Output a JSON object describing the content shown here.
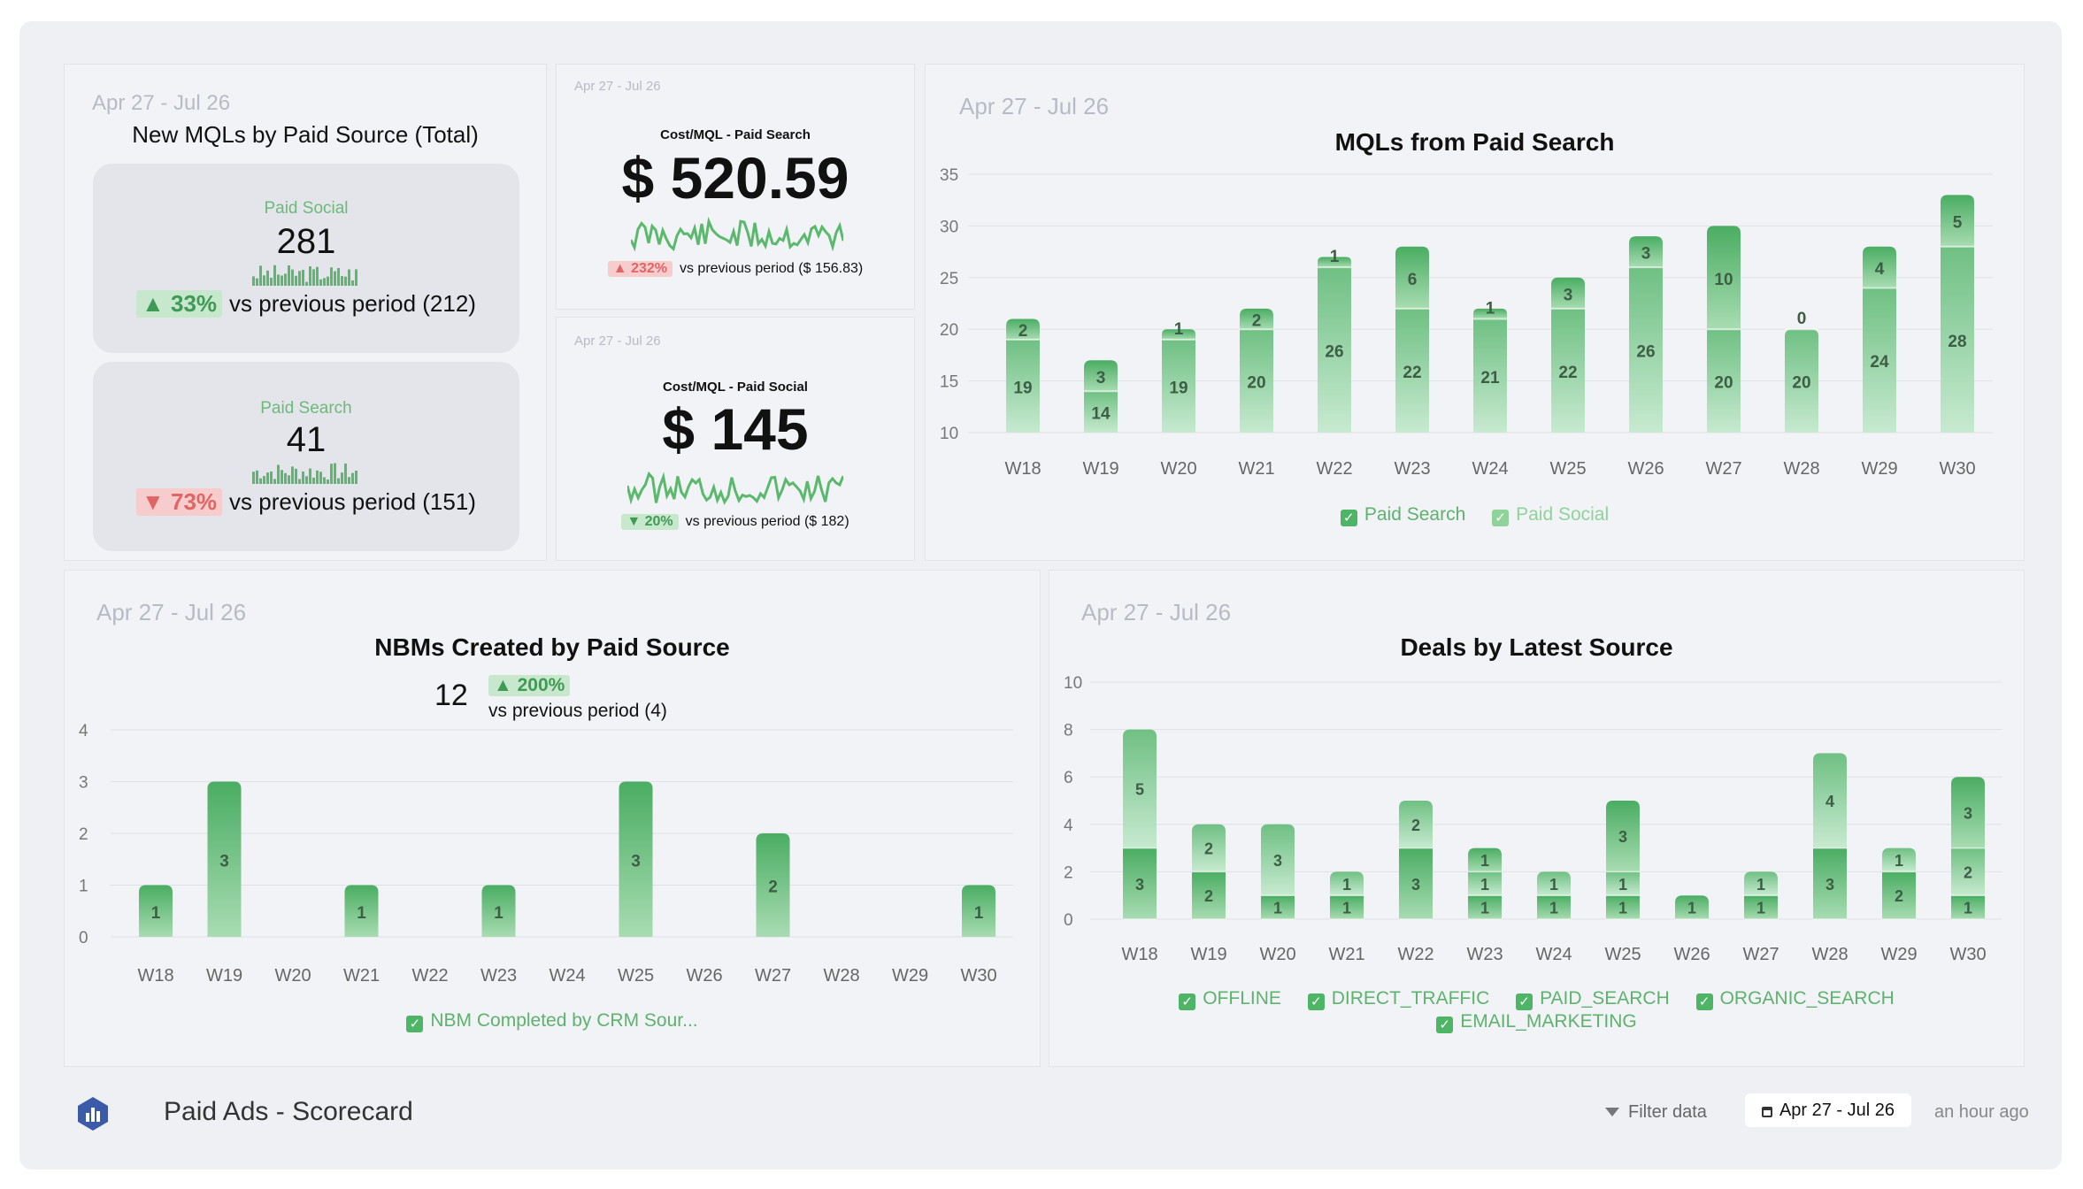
{
  "colors": {
    "accent": "#4fb566",
    "accent_light": "#9ed7a9",
    "up": "#3f9a55",
    "down": "#e06565",
    "muted": "#b7bbc4"
  },
  "card1": {
    "date": "Apr 27 - Jul 26",
    "title": "New MQLs by Paid Source (Total)",
    "social": {
      "label": "Paid Social",
      "value": "281",
      "change": "▲ 33%",
      "compare": "vs previous period (212)"
    },
    "search": {
      "label": "Paid Search",
      "value": "41",
      "change": "▼ 73%",
      "compare": "vs previous period (151)"
    }
  },
  "card2": {
    "date": "Apr 27 - Jul 26",
    "label": "Cost/MQL - Paid Search",
    "value": "$ 520.59",
    "change": "▲ 232%",
    "compare": "vs previous period ($ 156.83)"
  },
  "card3": {
    "date": "Apr 27 - Jul 26",
    "label": "Cost/MQL - Paid Social",
    "value": "$ 145",
    "change": "▼ 20%",
    "compare": "vs previous period ($ 182)"
  },
  "card4": {
    "date": "Apr 27 - Jul 26",
    "title": "MQLs from Paid Search",
    "legend": [
      "Paid Search",
      "Paid Social"
    ]
  },
  "card5": {
    "date": "Apr 27 - Jul 26",
    "title": "NBMs Created by Paid Source",
    "total": "12",
    "change": "▲ 200%",
    "compare": "vs previous period (4)",
    "legend": [
      "NBM Completed by CRM Sour..."
    ]
  },
  "card6": {
    "date": "Apr 27 - Jul 26",
    "title": "Deals by Latest Source",
    "legend": [
      "OFFLINE",
      "DIRECT_TRAFFIC",
      "PAID_SEARCH",
      "ORGANIC_SEARCH",
      "EMAIL_MARKETING"
    ]
  },
  "footer": {
    "title": "Paid Ads - Scorecard",
    "filter": "Filter data",
    "date_range": "Apr 27 - Jul 26",
    "updated": "an hour ago"
  },
  "chart_data": [
    {
      "type": "bar",
      "title": "MQLs from Paid Search",
      "categories": [
        "W18",
        "W19",
        "W20",
        "W21",
        "W22",
        "W23",
        "W24",
        "W25",
        "W26",
        "W27",
        "W28",
        "W29",
        "W30"
      ],
      "series": [
        {
          "name": "Paid Social",
          "values": [
            19,
            14,
            19,
            20,
            26,
            22,
            21,
            22,
            26,
            20,
            20,
            24,
            28
          ]
        },
        {
          "name": "Paid Search",
          "values": [
            2,
            3,
            1,
            2,
            1,
            6,
            1,
            3,
            3,
            10,
            0,
            4,
            5
          ]
        }
      ],
      "ylim": [
        10,
        35
      ],
      "yticks": [
        10,
        15,
        20,
        25,
        30,
        35
      ]
    },
    {
      "type": "bar",
      "title": "NBMs Created by Paid Source",
      "categories": [
        "W18",
        "W19",
        "W20",
        "W21",
        "W22",
        "W23",
        "W24",
        "W25",
        "W26",
        "W27",
        "W28",
        "W29",
        "W30"
      ],
      "series": [
        {
          "name": "NBM Completed by CRM Sour...",
          "values": [
            1,
            3,
            0,
            1,
            0,
            1,
            0,
            3,
            0,
            2,
            0,
            0,
            1
          ]
        }
      ],
      "ylim": [
        0,
        4
      ],
      "yticks": [
        0,
        1,
        2,
        3,
        4
      ]
    },
    {
      "type": "bar",
      "title": "Deals by Latest Source",
      "categories": [
        "W18",
        "W19",
        "W20",
        "W21",
        "W22",
        "W23",
        "W24",
        "W25",
        "W26",
        "W27",
        "W28",
        "W29",
        "W30"
      ],
      "segments": [
        [
          3,
          5
        ],
        [
          2,
          2
        ],
        [
          1,
          3
        ],
        [
          1,
          1
        ],
        [
          3,
          2
        ],
        [
          1,
          1,
          1
        ],
        [
          1,
          1
        ],
        [
          1,
          1,
          3
        ],
        [
          1
        ],
        [
          1,
          1
        ],
        [
          3,
          4
        ],
        [
          2,
          1
        ],
        [
          1,
          2,
          3
        ]
      ],
      "ylim": [
        0,
        10
      ],
      "yticks": [
        0,
        2,
        4,
        6,
        8,
        10
      ]
    }
  ]
}
